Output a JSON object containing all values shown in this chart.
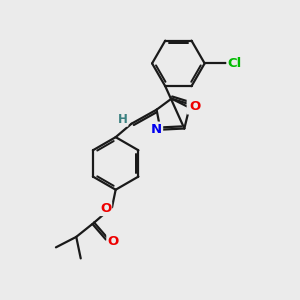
{
  "bg_color": "#ebebeb",
  "bond_color": "#1a1a1a",
  "bond_width": 1.6,
  "atom_colors": {
    "N": "#0000ee",
    "O": "#ee0000",
    "Cl": "#00bb00",
    "H": "#3a8080"
  },
  "figsize": [
    3.0,
    3.0
  ],
  "dpi": 100
}
